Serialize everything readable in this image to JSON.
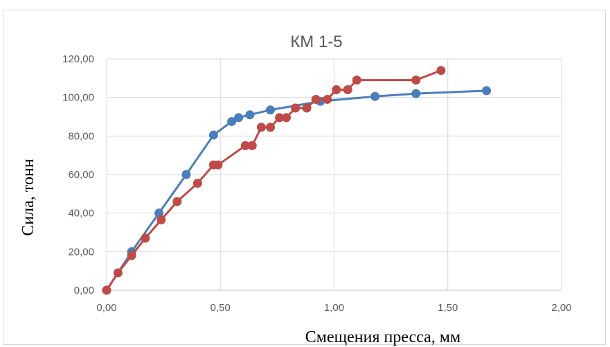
{
  "chart_data": {
    "type": "scatter",
    "title": "КМ 1-5",
    "xlabel": "Смещения пресса, мм",
    "ylabel": "Сила, тонн",
    "xlim": [
      0,
      2
    ],
    "ylim": [
      0,
      120
    ],
    "x_ticks": [
      "0,00",
      "0,50",
      "1,00",
      "1,50",
      "2,00"
    ],
    "y_ticks": [
      "0,00",
      "20,00",
      "40,00",
      "60,00",
      "80,00",
      "100,00",
      "120,00"
    ],
    "grid": true,
    "legend": "none",
    "series": [
      {
        "color": "#4a7ebb",
        "points": [
          [
            0.0,
            0.0
          ],
          [
            0.11,
            20.0
          ],
          [
            0.23,
            40.0
          ],
          [
            0.35,
            60.0
          ],
          [
            0.47,
            80.5
          ],
          [
            0.55,
            87.5
          ],
          [
            0.58,
            89.5
          ],
          [
            0.63,
            91.0
          ],
          [
            0.72,
            93.5
          ],
          [
            0.94,
            98.0
          ],
          [
            1.18,
            100.5
          ],
          [
            1.36,
            102.0
          ],
          [
            1.67,
            103.5
          ]
        ]
      },
      {
        "color": "#be4b48",
        "points": [
          [
            0.0,
            0.0
          ],
          [
            0.05,
            9.0
          ],
          [
            0.11,
            18.0
          ],
          [
            0.17,
            27.0
          ],
          [
            0.24,
            36.5
          ],
          [
            0.31,
            46.0
          ],
          [
            0.4,
            55.5
          ],
          [
            0.47,
            65.0
          ],
          [
            0.49,
            65.0
          ],
          [
            0.61,
            75.0
          ],
          [
            0.64,
            75.0
          ],
          [
            0.68,
            84.5
          ],
          [
            0.72,
            84.5
          ],
          [
            0.76,
            89.5
          ],
          [
            0.79,
            89.5
          ],
          [
            0.83,
            94.5
          ],
          [
            0.88,
            94.5
          ],
          [
            0.92,
            99.0
          ],
          [
            0.97,
            99.0
          ],
          [
            1.01,
            104.0
          ],
          [
            1.06,
            104.0
          ],
          [
            1.1,
            109.0
          ],
          [
            1.36,
            109.0
          ],
          [
            1.47,
            114.0
          ]
        ]
      }
    ]
  }
}
